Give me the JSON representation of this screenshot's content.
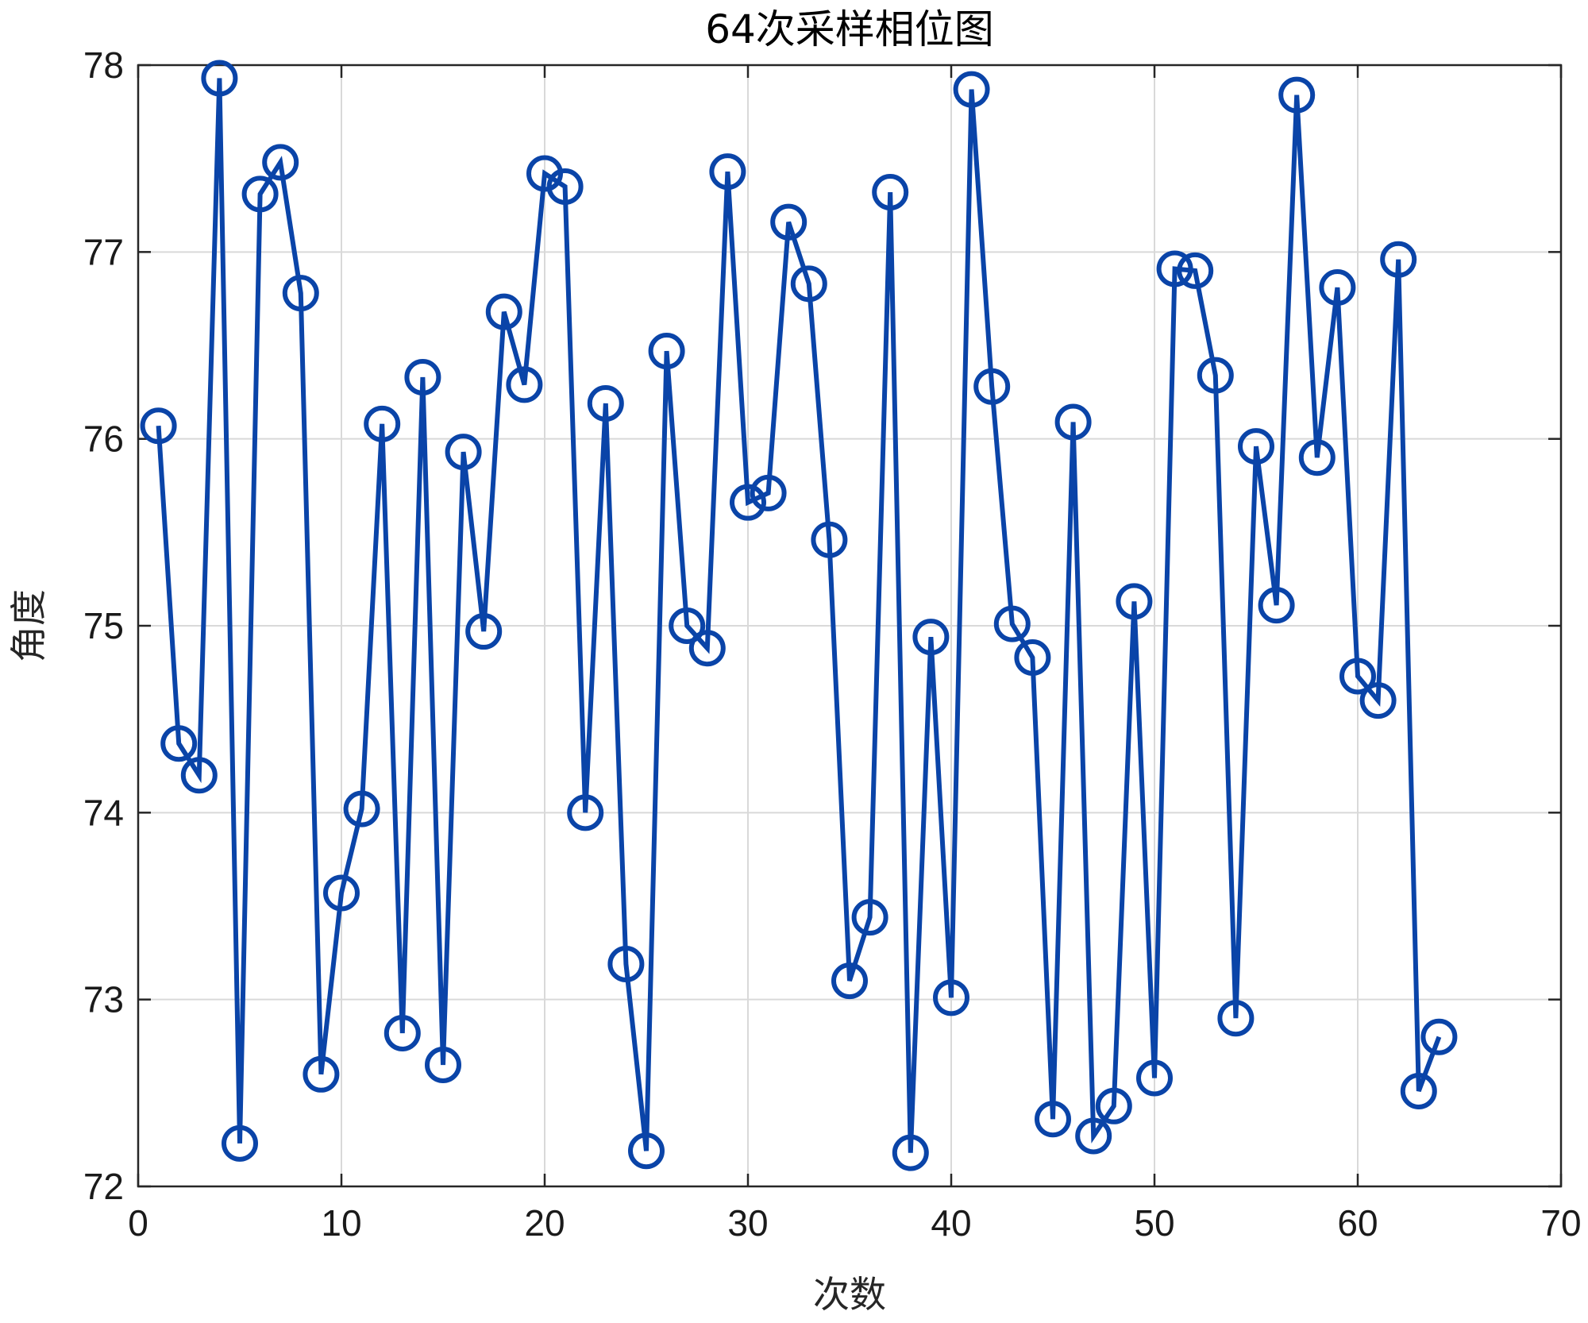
{
  "chart_data": {
    "type": "line",
    "title": "64次采样相位图",
    "xlabel": "次数",
    "ylabel": "角度",
    "xlim": [
      0,
      70
    ],
    "ylim": [
      72,
      78
    ],
    "xticks": [
      0,
      10,
      20,
      30,
      40,
      50,
      60,
      70
    ],
    "yticks": [
      72,
      73,
      74,
      75,
      76,
      77,
      78
    ],
    "grid": true,
    "marker": "circle",
    "series": [
      {
        "color": "#0a44a8",
        "x": [
          1,
          2,
          3,
          4,
          5,
          6,
          7,
          8,
          9,
          10,
          11,
          12,
          13,
          14,
          15,
          16,
          17,
          18,
          19,
          20,
          21,
          22,
          23,
          24,
          25,
          26,
          27,
          28,
          29,
          30,
          31,
          32,
          33,
          34,
          35,
          36,
          37,
          38,
          39,
          40,
          41,
          42,
          43,
          44,
          45,
          46,
          47,
          48,
          49,
          50,
          51,
          52,
          53,
          54,
          55,
          56,
          57,
          58,
          59,
          60,
          61,
          62,
          63,
          64
        ],
        "values": [
          76.07,
          74.37,
          74.2,
          77.93,
          72.23,
          77.31,
          77.48,
          76.78,
          72.6,
          73.57,
          74.02,
          76.08,
          72.82,
          76.33,
          72.65,
          75.93,
          74.97,
          76.68,
          76.29,
          77.42,
          77.35,
          74.0,
          76.19,
          73.19,
          72.19,
          76.47,
          75.0,
          74.88,
          77.43,
          75.66,
          75.71,
          77.16,
          76.83,
          75.46,
          73.1,
          73.44,
          77.32,
          72.18,
          74.94,
          73.01,
          77.87,
          76.28,
          75.01,
          74.83,
          72.36,
          76.09,
          72.27,
          72.43,
          75.13,
          72.58,
          76.91,
          76.9,
          76.34,
          72.9,
          75.96,
          75.11,
          77.84,
          75.9,
          76.81,
          74.73,
          74.6,
          76.96,
          72.51,
          72.8
        ]
      }
    ]
  }
}
